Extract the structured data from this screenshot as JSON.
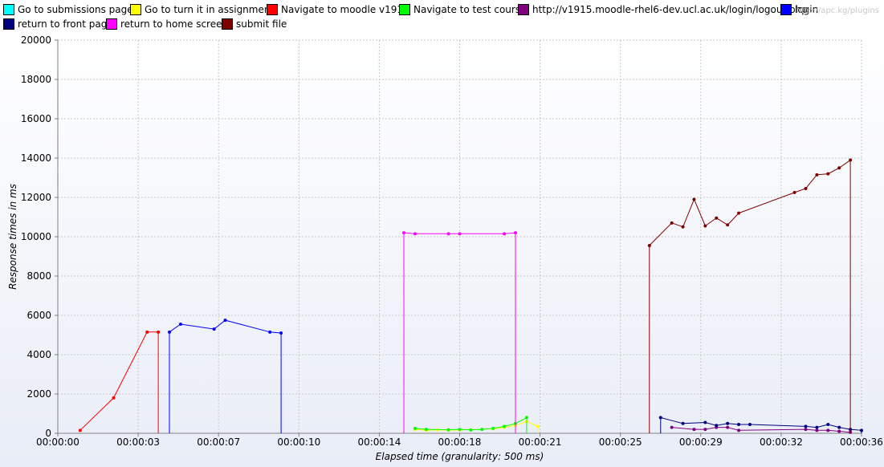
{
  "watermark": "http://apc.kg/plugins",
  "chart_data": {
    "type": "line",
    "xlabel": "Elapsed time (granularity: 500 ms)",
    "ylabel": "Response times in ms",
    "xlim": [
      0,
      36
    ],
    "ylim": [
      0,
      20000
    ],
    "x_ticks": [
      {
        "value": 0,
        "label": "00:00:00"
      },
      {
        "value": 3.6,
        "label": "00:00:03"
      },
      {
        "value": 7.2,
        "label": "00:00:07"
      },
      {
        "value": 10.8,
        "label": "00:00:10"
      },
      {
        "value": 14.4,
        "label": "00:00:14"
      },
      {
        "value": 18.0,
        "label": "00:00:18"
      },
      {
        "value": 21.6,
        "label": "00:00:21"
      },
      {
        "value": 25.2,
        "label": "00:00:25"
      },
      {
        "value": 28.8,
        "label": "00:00:29"
      },
      {
        "value": 32.4,
        "label": "00:00:32"
      },
      {
        "value": 36.0,
        "label": "00:00:36"
      }
    ],
    "y_ticks": [
      0,
      2000,
      4000,
      6000,
      8000,
      10000,
      12000,
      14000,
      16000,
      18000,
      20000
    ],
    "grid": true,
    "legend_position": "top",
    "series": [
      {
        "name": "Go to submissions page",
        "color": "#00ffff",
        "points": []
      },
      {
        "name": "Go to turn it in assignment",
        "color": "#ffff00",
        "points": [
          [
            16.0,
            200
          ],
          [
            16.5,
            150
          ],
          [
            17.0,
            180
          ],
          [
            17.5,
            160
          ],
          [
            18.0,
            170
          ],
          [
            18.5,
            190
          ],
          [
            19.0,
            200
          ],
          [
            19.5,
            230
          ],
          [
            20.0,
            300
          ],
          [
            20.5,
            400
          ],
          [
            21.0,
            600
          ],
          [
            21.5,
            350
          ],
          [
            21.5,
            0
          ]
        ]
      },
      {
        "name": "Navigate to moodle v1915",
        "color": "#ff0000",
        "points": [
          [
            1.0,
            150
          ],
          [
            2.5,
            1800
          ],
          [
            4.0,
            5150
          ],
          [
            4.5,
            5150
          ],
          [
            4.5,
            0
          ]
        ]
      },
      {
        "name": "Navigate to test course",
        "color": "#00ff00",
        "points": [
          [
            16.0,
            250
          ],
          [
            16.5,
            200
          ],
          [
            17.5,
            180
          ],
          [
            18.0,
            200
          ],
          [
            18.5,
            170
          ],
          [
            19.0,
            200
          ],
          [
            19.5,
            250
          ],
          [
            20.0,
            350
          ],
          [
            20.5,
            500
          ],
          [
            21.0,
            800
          ],
          [
            21.0,
            0
          ]
        ]
      },
      {
        "name": "http://v1915.moodle-rhel6-dev.ucl.ac.uk/login/logout.php",
        "color": "#800080",
        "points": [
          [
            27.5,
            300
          ],
          [
            28.5,
            200
          ],
          [
            29.0,
            200
          ],
          [
            29.5,
            300
          ],
          [
            30.0,
            300
          ],
          [
            30.5,
            150
          ],
          [
            33.5,
            200
          ],
          [
            34.0,
            150
          ],
          [
            34.5,
            150
          ],
          [
            35.0,
            100
          ],
          [
            35.5,
            50
          ]
        ]
      },
      {
        "name": "login",
        "color": "#0000ff",
        "points": [
          [
            5.0,
            0
          ],
          [
            5.0,
            5150
          ],
          [
            5.5,
            5550
          ],
          [
            7.0,
            5300
          ],
          [
            7.5,
            5750
          ],
          [
            9.5,
            5150
          ],
          [
            10.0,
            5100
          ],
          [
            10.0,
            0
          ]
        ]
      },
      {
        "name": "return to front page",
        "color": "#000080",
        "points": [
          [
            27.0,
            0
          ],
          [
            27.0,
            800
          ],
          [
            28.0,
            500
          ],
          [
            29.0,
            550
          ],
          [
            29.5,
            400
          ],
          [
            30.0,
            500
          ],
          [
            30.5,
            450
          ],
          [
            31.0,
            450
          ],
          [
            33.5,
            350
          ],
          [
            34.0,
            300
          ],
          [
            34.5,
            450
          ],
          [
            35.0,
            300
          ],
          [
            35.5,
            200
          ],
          [
            36.0,
            150
          ],
          [
            36.0,
            0
          ]
        ]
      },
      {
        "name": "return to home screen",
        "color": "#ff00ff",
        "points": [
          [
            15.5,
            0
          ],
          [
            15.5,
            10200
          ],
          [
            16.0,
            10150
          ],
          [
            17.5,
            10150
          ],
          [
            18.0,
            10150
          ],
          [
            20.0,
            10150
          ],
          [
            20.5,
            10200
          ],
          [
            20.5,
            0
          ]
        ]
      },
      {
        "name": "submit file",
        "color": "#800000",
        "points": [
          [
            26.5,
            0
          ],
          [
            26.5,
            9550
          ],
          [
            27.5,
            10700
          ],
          [
            28.0,
            10500
          ],
          [
            28.5,
            11900
          ],
          [
            29.0,
            10550
          ],
          [
            29.5,
            10950
          ],
          [
            30.0,
            10600
          ],
          [
            30.5,
            11200
          ],
          [
            33.0,
            12250
          ],
          [
            33.5,
            12450
          ],
          [
            34.0,
            13150
          ],
          [
            34.5,
            13200
          ],
          [
            35.0,
            13500
          ],
          [
            35.5,
            13900
          ],
          [
            35.5,
            0
          ]
        ]
      }
    ]
  }
}
